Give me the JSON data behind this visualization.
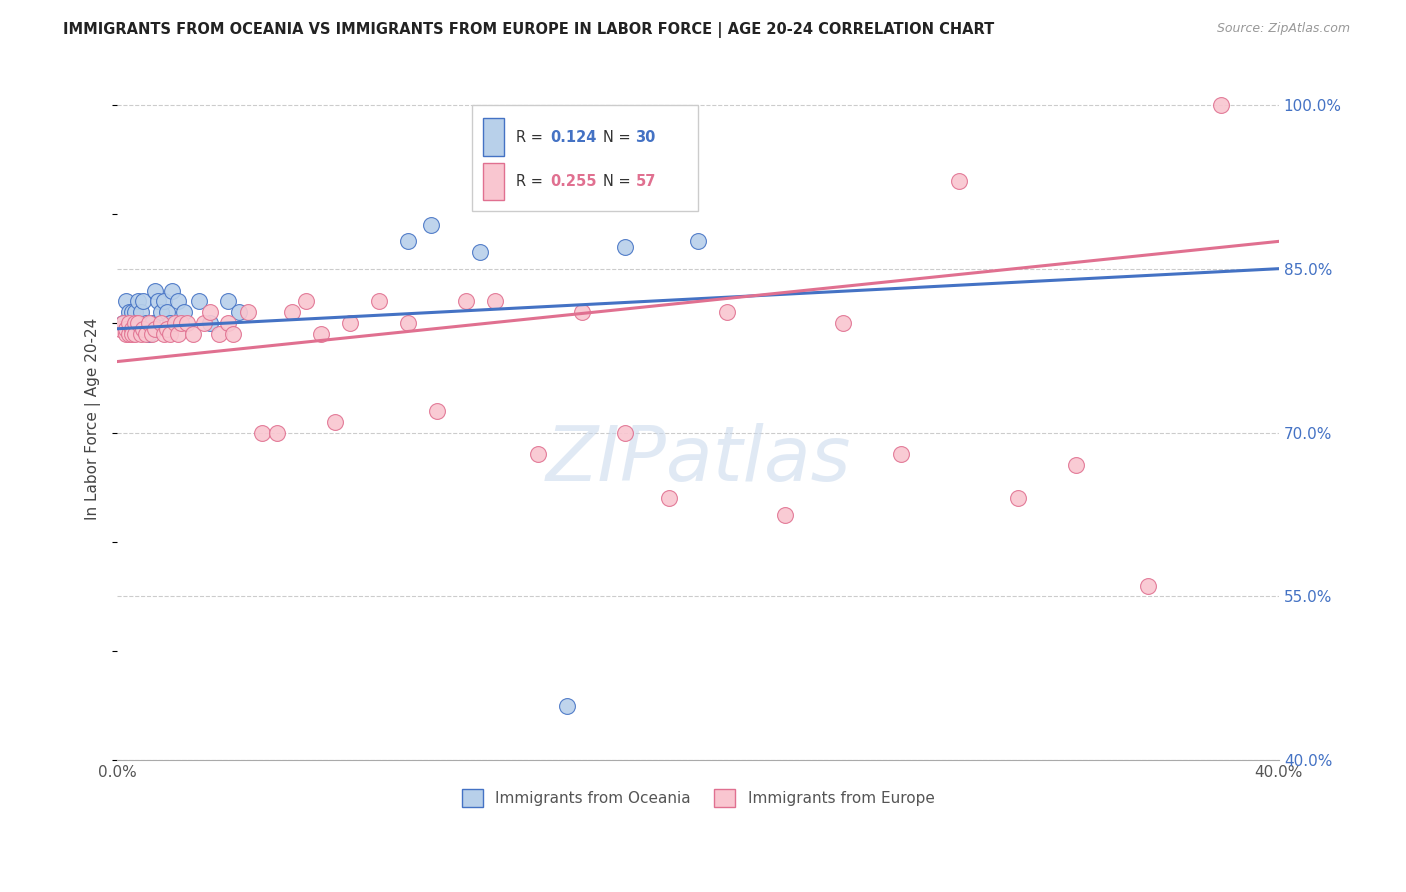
{
  "title": "IMMIGRANTS FROM OCEANIA VS IMMIGRANTS FROM EUROPE IN LABOR FORCE | AGE 20-24 CORRELATION CHART",
  "source": "Source: ZipAtlas.com",
  "ylabel": "In Labor Force | Age 20-24",
  "x_min": 0.0,
  "x_max": 0.4,
  "y_min": 0.4,
  "y_max": 1.025,
  "x_tick_positions": [
    0.0,
    0.05,
    0.1,
    0.15,
    0.2,
    0.25,
    0.3,
    0.35,
    0.4
  ],
  "x_tick_labels": [
    "0.0%",
    "",
    "",
    "",
    "",
    "",
    "",
    "",
    "40.0%"
  ],
  "y_ticks": [
    0.4,
    0.55,
    0.7,
    0.85,
    1.0
  ],
  "y_tick_labels": [
    "40.0%",
    "55.0%",
    "70.0%",
    "85.0%",
    "100.0%"
  ],
  "legend_blue_label": "Immigrants from Oceania",
  "legend_pink_label": "Immigrants from Europe",
  "R_blue": "0.124",
  "N_blue": "30",
  "R_pink": "0.255",
  "N_pink": "57",
  "watermark": "ZIPatlas",
  "blue_fill": "#b8d0ea",
  "blue_edge": "#4472c4",
  "pink_fill": "#f9c6d0",
  "pink_edge": "#e07090",
  "blue_line": "#4472c4",
  "pink_line": "#e07090",
  "grid_color": "#cccccc",
  "oceania_x": [
    0.002,
    0.003,
    0.004,
    0.005,
    0.006,
    0.007,
    0.008,
    0.009,
    0.01,
    0.011,
    0.012,
    0.013,
    0.014,
    0.015,
    0.016,
    0.017,
    0.018,
    0.019,
    0.021,
    0.023,
    0.028,
    0.032,
    0.038,
    0.042,
    0.1,
    0.108,
    0.125,
    0.175,
    0.2,
    0.155
  ],
  "oceania_y": [
    0.8,
    0.82,
    0.81,
    0.81,
    0.81,
    0.82,
    0.81,
    0.82,
    0.8,
    0.79,
    0.8,
    0.83,
    0.82,
    0.81,
    0.82,
    0.81,
    0.8,
    0.83,
    0.82,
    0.81,
    0.82,
    0.8,
    0.82,
    0.81,
    0.875,
    0.89,
    0.865,
    0.87,
    0.875,
    0.45
  ],
  "europe_x": [
    0.001,
    0.002,
    0.003,
    0.003,
    0.004,
    0.004,
    0.005,
    0.005,
    0.006,
    0.006,
    0.007,
    0.008,
    0.009,
    0.01,
    0.011,
    0.012,
    0.013,
    0.015,
    0.016,
    0.017,
    0.018,
    0.02,
    0.021,
    0.022,
    0.024,
    0.026,
    0.03,
    0.032,
    0.035,
    0.038,
    0.04,
    0.045,
    0.05,
    0.055,
    0.06,
    0.065,
    0.07,
    0.075,
    0.08,
    0.09,
    0.1,
    0.11,
    0.12,
    0.13,
    0.145,
    0.16,
    0.175,
    0.19,
    0.21,
    0.23,
    0.25,
    0.27,
    0.29,
    0.31,
    0.33,
    0.355,
    0.38
  ],
  "europe_y": [
    0.795,
    0.8,
    0.79,
    0.795,
    0.79,
    0.8,
    0.795,
    0.79,
    0.8,
    0.79,
    0.8,
    0.79,
    0.795,
    0.79,
    0.8,
    0.79,
    0.795,
    0.8,
    0.79,
    0.795,
    0.79,
    0.8,
    0.79,
    0.8,
    0.8,
    0.79,
    0.8,
    0.81,
    0.79,
    0.8,
    0.79,
    0.81,
    0.7,
    0.7,
    0.81,
    0.82,
    0.79,
    0.71,
    0.8,
    0.82,
    0.8,
    0.72,
    0.82,
    0.82,
    0.68,
    0.81,
    0.7,
    0.64,
    0.81,
    0.625,
    0.8,
    0.68,
    0.93,
    0.64,
    0.67,
    0.56,
    1.0
  ]
}
